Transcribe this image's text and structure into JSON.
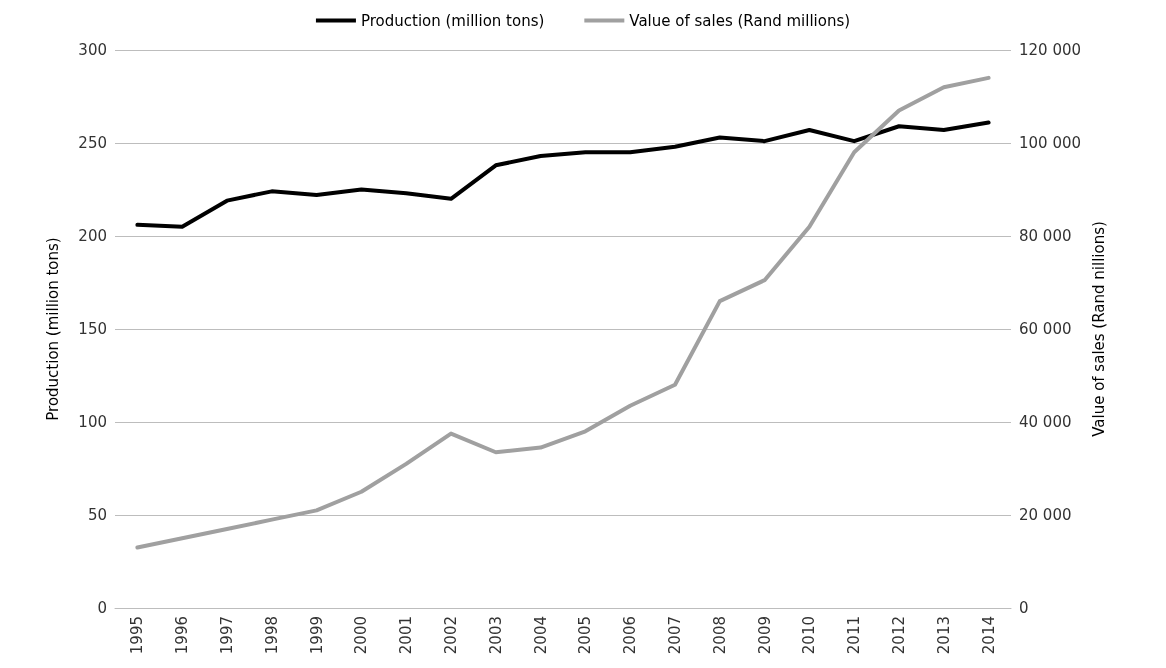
{
  "chart_data": {
    "type": "line",
    "categories": [
      "1995",
      "1996",
      "1997",
      "1998",
      "1999",
      "2000",
      "2001",
      "2002",
      "2003",
      "2004",
      "2005",
      "2006",
      "2007",
      "2008",
      "2009",
      "2010",
      "2011",
      "2012",
      "2013",
      "2014"
    ],
    "series": [
      {
        "name": "Production (million tons)",
        "color": "#000000",
        "values": [
          206,
          205,
          219,
          224,
          222,
          225,
          223,
          220,
          238,
          243,
          245,
          245,
          248,
          253,
          251,
          257,
          251,
          259,
          257,
          261
        ]
      },
      {
        "name": "Value of sales (Rand millions)",
        "color": "#a0a0a0",
        "axis": "y2",
        "values": [
          13000,
          15000,
          17000,
          19000,
          21000,
          25000,
          31000,
          37500,
          33500,
          34500,
          38000,
          43500,
          48000,
          66000,
          70500,
          82000,
          98000,
          107000,
          112000,
          114000
        ]
      }
    ],
    "ylabel": "Production (million tons)",
    "y2label": "Value of sales (Rand nillions)",
    "ylim": [
      0,
      300
    ],
    "yticks": [
      0,
      50,
      100,
      150,
      200,
      250,
      300
    ],
    "y2lim": [
      0,
      120000
    ],
    "y2ticks": [
      0,
      {
        "value": 20000,
        "label": "20 000"
      },
      {
        "value": 40000,
        "label": "40 000"
      },
      {
        "value": 60000,
        "label": "60 000"
      },
      {
        "value": 80000,
        "label": "80 000"
      },
      {
        "value": 100000,
        "label": "100 000"
      },
      {
        "value": 120000,
        "label": "120 000"
      }
    ],
    "grid": "y",
    "legend": "top",
    "marker": "none",
    "line_style": "solid"
  }
}
